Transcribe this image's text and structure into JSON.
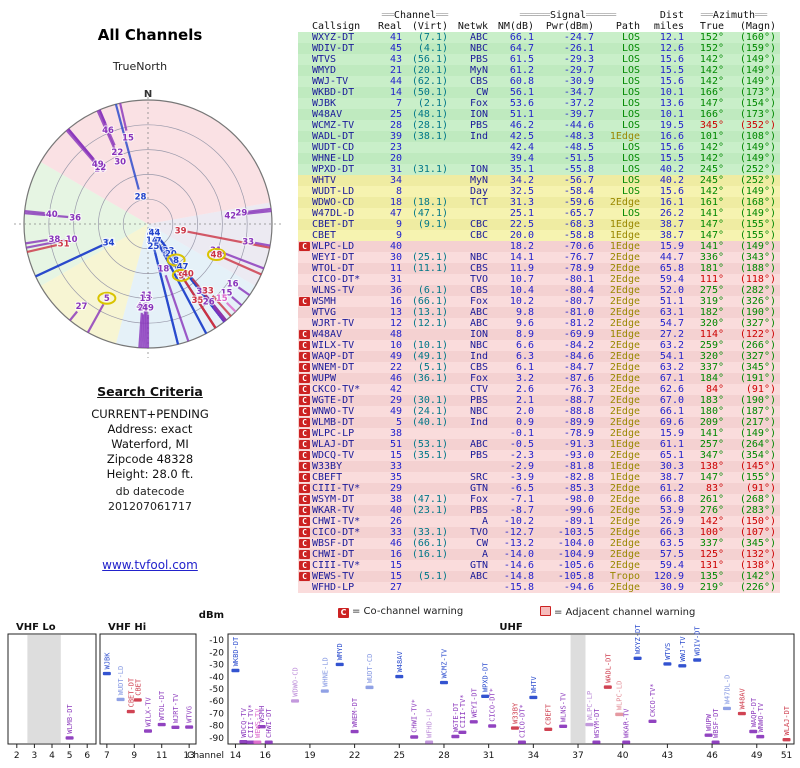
{
  "radar": {
    "title": "All Channels",
    "north_label": "TrueNorth",
    "n_marker": "N"
  },
  "criteria": {
    "heading": "Search Criteria",
    "lines": [
      "CURRENT+PENDING",
      "Address: exact",
      "Waterford, MI",
      "Zipcode 48328",
      "Height: 28.0 ft."
    ]
  },
  "datecode": {
    "label": "db datecode",
    "value": "201207061717"
  },
  "link": {
    "text": "www.tvfool.com"
  },
  "legend": {
    "co_symbol": "C",
    "co": "= Co-channel warning",
    "adj": "= Adjacent channel warning"
  },
  "path_colors": {
    "LOS": "#2244cc",
    "1Edge": "#cc3344",
    "2Edge": "#8833bb",
    "Tropo": "#dd66cc"
  },
  "table": {
    "group": {
      "bar2": "══",
      "bar5": "═════",
      "channel": "Channel",
      "signal": "Signal",
      "dist": "Dist",
      "azimuth": "Azimuth"
    },
    "columns": [
      "Callsign",
      "Real",
      "(Virt)",
      "Netwk",
      "NM(dB)",
      "Pwr(dBm)",
      "Path",
      "miles",
      "True",
      "(Magn)"
    ]
  },
  "band_chart": {
    "dbm_label": "dBm",
    "channel_label": "Channel",
    "dbm_ticks": [
      -10,
      -20,
      -30,
      -40,
      -50,
      -60,
      -70,
      -80,
      -90
    ],
    "bands": [
      {
        "name": "VHF Lo",
        "lo": 2,
        "hi": 6,
        "ticks": [
          2,
          3,
          4,
          5,
          6
        ]
      },
      {
        "name": "VHF Hi",
        "lo": 7,
        "hi": 13,
        "ticks": [
          7,
          9,
          11,
          13
        ]
      },
      {
        "name": "UHF",
        "lo": 14,
        "hi": 51,
        "ticks": [
          14,
          16,
          19,
          22,
          25,
          28,
          31,
          34,
          37,
          40,
          43,
          46,
          49,
          51
        ]
      }
    ],
    "gray_ranges": [
      [
        2.6,
        4.5
      ],
      [
        36.5,
        37.5
      ]
    ]
  },
  "chart_data": {
    "type": "table",
    "title": "All Channels",
    "description": "TV station signal analysis; stations plotted on polar radar (azimuth vs strength) and per-channel dBm band chart",
    "stations": [
      {
        "callsign": "WXYZ-DT",
        "real": 41,
        "virt": "(7.1)",
        "netwk": "ABC",
        "nm": 66.1,
        "pwr": -24.7,
        "path": "LOS",
        "miles": 12.1,
        "az_true": "152°",
        "az_magn": "(160°)",
        "warn": "",
        "az_red": false
      },
      {
        "callsign": "WDIV-DT",
        "real": 45,
        "virt": "(4.1)",
        "netwk": "NBC",
        "nm": 64.7,
        "pwr": -26.1,
        "path": "LOS",
        "miles": 12.6,
        "az_true": "152°",
        "az_magn": "(159°)",
        "warn": "",
        "az_red": false
      },
      {
        "callsign": "WTVS",
        "real": 43,
        "virt": "(56.1)",
        "netwk": "PBS",
        "nm": 61.5,
        "pwr": -29.3,
        "path": "LOS",
        "miles": 15.6,
        "az_true": "142°",
        "az_magn": "(149°)",
        "warn": "",
        "az_red": false
      },
      {
        "callsign": "WMYD",
        "real": 21,
        "virt": "(20.1)",
        "netwk": "MyN",
        "nm": 61.2,
        "pwr": -29.7,
        "path": "LOS",
        "miles": 15.5,
        "az_true": "142°",
        "az_magn": "(149°)",
        "warn": "",
        "az_red": false
      },
      {
        "callsign": "WWJ-TV",
        "real": 44,
        "virt": "(62.1)",
        "netwk": "CBS",
        "nm": 60.8,
        "pwr": -30.9,
        "path": "LOS",
        "miles": 15.6,
        "az_true": "142°",
        "az_magn": "(149°)",
        "warn": "",
        "az_red": false
      },
      {
        "callsign": "WKBD-DT",
        "real": 14,
        "virt": "(50.1)",
        "netwk": "CW",
        "nm": 56.1,
        "pwr": -34.7,
        "path": "LOS",
        "miles": 10.1,
        "az_true": "166°",
        "az_magn": "(173°)",
        "warn": "",
        "az_red": false
      },
      {
        "callsign": "WJBK",
        "real": 7,
        "virt": "(2.1)",
        "netwk": "Fox",
        "nm": 53.6,
        "pwr": -37.2,
        "path": "LOS",
        "miles": 13.6,
        "az_true": "147°",
        "az_magn": "(154°)",
        "warn": "",
        "az_red": false
      },
      {
        "callsign": "W48AV",
        "real": 25,
        "virt": "(48.1)",
        "netwk": "ION",
        "nm": 51.1,
        "pwr": -39.7,
        "path": "LOS",
        "miles": 10.1,
        "az_true": "166°",
        "az_magn": "(173°)",
        "warn": "",
        "az_red": false
      },
      {
        "callsign": "WCMZ-TV",
        "real": 28,
        "virt": "(28.1)",
        "netwk": "PBS",
        "nm": 46.2,
        "pwr": -44.6,
        "path": "LOS",
        "miles": 19.5,
        "az_true": "345°",
        "az_magn": "(352°)",
        "warn": "",
        "az_red": true
      },
      {
        "callsign": "WADL-DT",
        "real": 39,
        "virt": "(38.1)",
        "netwk": "Ind",
        "nm": 42.5,
        "pwr": -48.3,
        "path": "1Edge",
        "miles": 16.6,
        "az_true": "101°",
        "az_magn": "(108°)",
        "warn": "",
        "az_red": false
      },
      {
        "callsign": "WUDT-CD",
        "real": 23,
        "virt": "",
        "netwk": "",
        "nm": 42.4,
        "pwr": -48.5,
        "path": "LOS",
        "miles": 15.6,
        "az_true": "142°",
        "az_magn": "(149°)",
        "warn": "",
        "az_red": false
      },
      {
        "callsign": "WHNE-LD",
        "real": 20,
        "virt": "",
        "netwk": "",
        "nm": 39.4,
        "pwr": -51.5,
        "path": "LOS",
        "miles": 15.5,
        "az_true": "142°",
        "az_magn": "(149°)",
        "warn": "",
        "az_red": false
      },
      {
        "callsign": "WPXD-DT",
        "real": 31,
        "virt": "(31.1)",
        "netwk": "ION",
        "nm": 35.1,
        "pwr": -55.8,
        "path": "LOS",
        "miles": 40.2,
        "az_true": "245°",
        "az_magn": "(252°)",
        "warn": "",
        "az_red": false
      },
      {
        "callsign": "WHTV",
        "real": 34,
        "virt": "",
        "netwk": "MyN",
        "nm": 34.2,
        "pwr": -56.7,
        "path": "LOS",
        "miles": 40.2,
        "az_true": "245°",
        "az_magn": "(252°)",
        "warn": "",
        "az_red": false
      },
      {
        "callsign": "WUDT-LD",
        "real": 8,
        "virt": "",
        "netwk": "Day",
        "nm": 32.5,
        "pwr": -58.4,
        "path": "LOS",
        "miles": 15.6,
        "az_true": "142°",
        "az_magn": "(149°)",
        "warn": "",
        "az_red": false,
        "hl": true
      },
      {
        "callsign": "WDWO-CD",
        "real": 18,
        "virt": "(18.1)",
        "netwk": "TCT",
        "nm": 31.3,
        "pwr": -59.6,
        "path": "2Edge",
        "miles": 16.1,
        "az_true": "161°",
        "az_magn": "(168°)",
        "warn": "",
        "az_red": false
      },
      {
        "callsign": "W47DL-D",
        "real": 47,
        "virt": "(47.1)",
        "netwk": "",
        "nm": 25.1,
        "pwr": -65.7,
        "path": "LOS",
        "miles": 26.2,
        "az_true": "141°",
        "az_magn": "(149°)",
        "warn": "",
        "az_red": false
      },
      {
        "callsign": "CBET-DT",
        "real": 9,
        "virt": "(9.1)",
        "netwk": "CBC",
        "nm": 22.5,
        "pwr": -68.3,
        "path": "1Edge",
        "miles": 38.7,
        "az_true": "147°",
        "az_magn": "(155°)",
        "warn": "",
        "az_red": false
      },
      {
        "callsign": "CBET",
        "real": 9,
        "virt": "",
        "netwk": "CBC",
        "nm": 20.0,
        "pwr": -58.8,
        "path": "1Edge",
        "miles": 38.7,
        "az_true": "147°",
        "az_magn": "(155°)",
        "warn": "",
        "az_red": false,
        "hl": true
      },
      {
        "callsign": "WLPC-LD",
        "real": 40,
        "virt": "",
        "netwk": "",
        "nm": 18.2,
        "pwr": -70.6,
        "path": "1Edge",
        "miles": 15.9,
        "az_true": "141°",
        "az_magn": "(149°)",
        "warn": "C",
        "az_red": false
      },
      {
        "callsign": "WEYI-DT",
        "real": 30,
        "virt": "(25.1)",
        "netwk": "NBC",
        "nm": 14.1,
        "pwr": -76.7,
        "path": "2Edge",
        "miles": 44.7,
        "az_true": "336°",
        "az_magn": "(343°)",
        "warn": "",
        "az_red": false
      },
      {
        "callsign": "WTOL-DT",
        "real": 11,
        "virt": "(11.1)",
        "netwk": "CBS",
        "nm": 11.9,
        "pwr": -78.9,
        "path": "2Edge",
        "miles": 65.8,
        "az_true": "181°",
        "az_magn": "(188°)",
        "warn": "",
        "az_red": false
      },
      {
        "callsign": "CICO-DT*",
        "real": 31,
        "virt": "",
        "netwk": "TVO",
        "nm": 10.7,
        "pwr": -80.1,
        "path": "2Edge",
        "miles": 59.4,
        "az_true": "111°",
        "az_magn": "(118°)",
        "warn": "",
        "az_red": true
      },
      {
        "callsign": "WLNS-TV",
        "real": 36,
        "virt": "(6.1)",
        "netwk": "CBS",
        "nm": 10.4,
        "pwr": -80.4,
        "path": "2Edge",
        "miles": 52.0,
        "az_true": "275°",
        "az_magn": "(282°)",
        "warn": "",
        "az_red": false
      },
      {
        "callsign": "WSMH",
        "real": 16,
        "virt": "(66.1)",
        "netwk": "Fox",
        "nm": 10.2,
        "pwr": -80.7,
        "path": "2Edge",
        "miles": 51.1,
        "az_true": "319°",
        "az_magn": "(326°)",
        "warn": "C",
        "az_red": false
      },
      {
        "callsign": "WTVG",
        "real": 13,
        "virt": "(13.1)",
        "netwk": "ABC",
        "nm": 9.8,
        "pwr": -81.0,
        "path": "2Edge",
        "miles": 63.1,
        "az_true": "182°",
        "az_magn": "(190°)",
        "warn": "",
        "az_red": false
      },
      {
        "callsign": "WJRT-TV",
        "real": 12,
        "virt": "(12.1)",
        "netwk": "ABC",
        "nm": 9.6,
        "pwr": -81.2,
        "path": "2Edge",
        "miles": 54.7,
        "az_true": "320°",
        "az_magn": "(327°)",
        "warn": "",
        "az_red": false
      },
      {
        "callsign": "W48AV",
        "real": 48,
        "virt": "",
        "netwk": "ION",
        "nm": 8.9,
        "pwr": -69.9,
        "path": "1Edge",
        "miles": 27.2,
        "az_true": "114°",
        "az_magn": "(122°)",
        "warn": "C",
        "az_red": true,
        "hl": true
      },
      {
        "callsign": "WILX-TV",
        "real": 10,
        "virt": "(10.1)",
        "netwk": "NBC",
        "nm": 6.6,
        "pwr": -84.2,
        "path": "2Edge",
        "miles": 63.2,
        "az_true": "259°",
        "az_magn": "(266°)",
        "warn": "C",
        "az_red": false
      },
      {
        "callsign": "WAQP-DT",
        "real": 49,
        "virt": "(49.1)",
        "netwk": "Ind",
        "nm": 6.3,
        "pwr": -84.6,
        "path": "2Edge",
        "miles": 54.1,
        "az_true": "320°",
        "az_magn": "(327°)",
        "warn": "C",
        "az_red": false
      },
      {
        "callsign": "WNEM-DT",
        "real": 22,
        "virt": "(5.1)",
        "netwk": "CBS",
        "nm": 6.1,
        "pwr": -84.7,
        "path": "2Edge",
        "miles": 63.2,
        "az_true": "337°",
        "az_magn": "(345°)",
        "warn": "C",
        "az_red": false
      },
      {
        "callsign": "WUPW",
        "real": 46,
        "virt": "(36.1)",
        "netwk": "Fox",
        "nm": 3.2,
        "pwr": -87.6,
        "path": "2Edge",
        "miles": 67.1,
        "az_true": "184°",
        "az_magn": "(191°)",
        "warn": "C",
        "az_red": false
      },
      {
        "callsign": "CKCO-TV*",
        "real": 42,
        "virt": "",
        "netwk": "CTV",
        "nm": 2.6,
        "pwr": -76.3,
        "path": "2Edge",
        "miles": 62.6,
        "az_true": "84°",
        "az_magn": "(91°)",
        "warn": "C",
        "az_red": true
      },
      {
        "callsign": "WGTE-DT",
        "real": 29,
        "virt": "(30.1)",
        "netwk": "PBS",
        "nm": 2.1,
        "pwr": -88.7,
        "path": "2Edge",
        "miles": 67.0,
        "az_true": "183°",
        "az_magn": "(190°)",
        "warn": "C",
        "az_red": false
      },
      {
        "callsign": "WNWO-TV",
        "real": 49,
        "virt": "(24.1)",
        "netwk": "NBC",
        "nm": 2.0,
        "pwr": -88.8,
        "path": "2Edge",
        "miles": 66.1,
        "az_true": "180°",
        "az_magn": "(187°)",
        "warn": "C",
        "az_red": false
      },
      {
        "callsign": "WLMB-DT",
        "real": 5,
        "virt": "(40.1)",
        "netwk": "Ind",
        "nm": 0.9,
        "pwr": -89.9,
        "path": "2Edge",
        "miles": 69.6,
        "az_true": "209°",
        "az_magn": "(217°)",
        "warn": "C",
        "az_red": false,
        "hl": true
      },
      {
        "callsign": "WLPC-LP",
        "real": 38,
        "virt": "",
        "netwk": "",
        "nm": -0.1,
        "pwr": -78.9,
        "path": "2Edge",
        "miles": 15.9,
        "az_true": "141°",
        "az_magn": "(149°)",
        "warn": "C",
        "az_red": false
      },
      {
        "callsign": "WLAJ-DT",
        "real": 51,
        "virt": "(53.1)",
        "netwk": "ABC",
        "nm": -0.5,
        "pwr": -91.3,
        "path": "1Edge",
        "miles": 61.1,
        "az_true": "257°",
        "az_magn": "(264°)",
        "warn": "C",
        "az_red": false
      },
      {
        "callsign": "WDCQ-TV",
        "real": 15,
        "virt": "(35.1)",
        "netwk": "PBS",
        "nm": -2.3,
        "pwr": -93.0,
        "path": "2Edge",
        "miles": 65.1,
        "az_true": "347°",
        "az_magn": "(354°)",
        "warn": "C",
        "az_red": false
      },
      {
        "callsign": "W33BY",
        "real": 33,
        "virt": "",
        "netwk": "",
        "nm": -2.9,
        "pwr": -81.8,
        "path": "1Edge",
        "miles": 30.3,
        "az_true": "138°",
        "az_magn": "(145°)",
        "warn": "C",
        "az_red": true
      },
      {
        "callsign": "CBEFT",
        "real": 35,
        "virt": "",
        "netwk": "SRC",
        "nm": -3.9,
        "pwr": -82.8,
        "path": "1Edge",
        "miles": 38.7,
        "az_true": "147°",
        "az_magn": "(155°)",
        "warn": "C",
        "az_red": false
      },
      {
        "callsign": "CIII-TV*",
        "real": 29,
        "virt": "",
        "netwk": "GTN",
        "nm": -6.5,
        "pwr": -85.3,
        "path": "2Edge",
        "miles": 61.2,
        "az_true": "83°",
        "az_magn": "(91°)",
        "warn": "C",
        "az_red": true
      },
      {
        "callsign": "WSYM-DT",
        "real": 38,
        "virt": "(47.1)",
        "netwk": "Fox",
        "nm": -7.1,
        "pwr": -98.0,
        "path": "2Edge",
        "miles": 66.8,
        "az_true": "261°",
        "az_magn": "(268°)",
        "warn": "C",
        "az_red": false
      },
      {
        "callsign": "WKAR-TV",
        "real": 40,
        "virt": "(23.1)",
        "netwk": "PBS",
        "nm": -8.7,
        "pwr": -99.6,
        "path": "2Edge",
        "miles": 53.9,
        "az_true": "276°",
        "az_magn": "(283°)",
        "warn": "C",
        "az_red": false
      },
      {
        "callsign": "CHWI-TV*",
        "real": 26,
        "virt": "",
        "netwk": "A",
        "nm": -10.2,
        "pwr": -89.1,
        "path": "2Edge",
        "miles": 26.9,
        "az_true": "142°",
        "az_magn": "(150°)",
        "warn": "C",
        "az_red": true
      },
      {
        "callsign": "CICO-DT*",
        "real": 33,
        "virt": "(33.1)",
        "netwk": "TVO",
        "nm": -12.7,
        "pwr": -103.5,
        "path": "2Edge",
        "miles": 66.3,
        "az_true": "100°",
        "az_magn": "(107°)",
        "warn": "C",
        "az_red": true
      },
      {
        "callsign": "WBSF-DT",
        "real": 46,
        "virt": "(66.1)",
        "netwk": "CW",
        "nm": -13.2,
        "pwr": -104.0,
        "path": "2Edge",
        "miles": 63.5,
        "az_true": "337°",
        "az_magn": "(345°)",
        "warn": "C",
        "az_red": false
      },
      {
        "callsign": "CHWI-DT",
        "real": 16,
        "virt": "(16.1)",
        "netwk": "A",
        "nm": -14.0,
        "pwr": -104.9,
        "path": "2Edge",
        "miles": 57.5,
        "az_true": "125°",
        "az_magn": "(132°)",
        "warn": "C",
        "az_red": true
      },
      {
        "callsign": "CIII-TV*",
        "real": 15,
        "virt": "",
        "netwk": "GTN",
        "nm": -14.6,
        "pwr": -105.6,
        "path": "2Edge",
        "miles": 59.4,
        "az_true": "131°",
        "az_magn": "(138°)",
        "warn": "C",
        "az_red": true
      },
      {
        "callsign": "WEWS-TV",
        "real": 15,
        "virt": "(5.1)",
        "netwk": "ABC",
        "nm": -14.8,
        "pwr": -105.8,
        "path": "Tropo",
        "miles": 120.9,
        "az_true": "135°",
        "az_magn": "(142°)",
        "warn": "C",
        "az_red": false
      },
      {
        "callsign": "WFHD-LP",
        "real": 27,
        "virt": "",
        "netwk": "",
        "nm": -15.8,
        "pwr": -94.6,
        "path": "2Edge",
        "miles": 30.9,
        "az_true": "219°",
        "az_magn": "(226°)",
        "warn": "",
        "az_red": false
      }
    ]
  }
}
